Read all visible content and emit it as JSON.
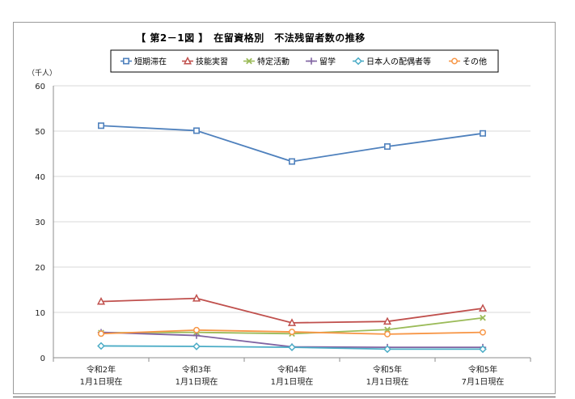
{
  "chart_data": {
    "type": "line",
    "title": "【 第2－1図 】　在留資格別　不法残留者数の推移",
    "ylabel": "（千人）",
    "ylim": [
      0,
      60
    ],
    "yticks": [
      0,
      10,
      20,
      30,
      40,
      50,
      60
    ],
    "grid": true,
    "legend": "top",
    "categories": [
      [
        "令和2年",
        "1月1日現在"
      ],
      [
        "令和3年",
        "1月1日現在"
      ],
      [
        "令和4年",
        "1月1日現在"
      ],
      [
        "令和5年",
        "1月1日現在"
      ],
      [
        "令和5年",
        "7月1日現在"
      ]
    ],
    "series": [
      {
        "name": "短期滞在",
        "color": "#4f81bd",
        "marker": "square",
        "values": [
          51.2,
          50.1,
          43.3,
          46.6,
          49.5
        ]
      },
      {
        "name": "技能実習",
        "color": "#c0504d",
        "marker": "triangle",
        "values": [
          12.4,
          13.1,
          7.7,
          8.0,
          10.9
        ]
      },
      {
        "name": "特定活動",
        "color": "#9bbb59",
        "marker": "x",
        "values": [
          5.5,
          5.6,
          5.3,
          6.2,
          8.8
        ]
      },
      {
        "name": "留学",
        "color": "#8064a2",
        "marker": "plus",
        "values": [
          5.6,
          4.9,
          2.4,
          2.3,
          2.3
        ]
      },
      {
        "name": "日本人の配偶者等",
        "color": "#4bacc6",
        "marker": "diamond",
        "values": [
          2.6,
          2.5,
          2.3,
          1.9,
          1.9
        ]
      },
      {
        "name": "その他",
        "color": "#f79646",
        "marker": "circle",
        "values": [
          5.3,
          6.1,
          5.7,
          5.2,
          5.6
        ]
      }
    ]
  }
}
